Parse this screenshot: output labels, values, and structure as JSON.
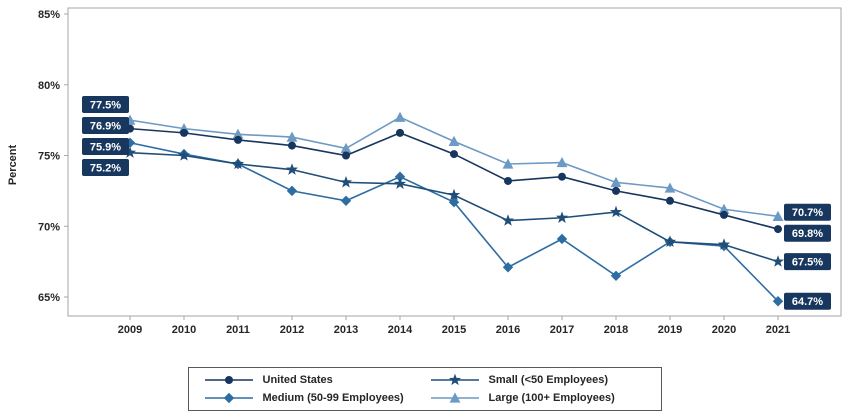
{
  "chart_data": {
    "type": "line",
    "title": "",
    "ylabel": "Percent",
    "xlabel": "",
    "ylim": [
      65,
      85
    ],
    "grid": false,
    "legend_position": "bottom",
    "yticks": [
      {
        "label": "65%",
        "value": 65
      },
      {
        "label": "70%",
        "value": 70
      },
      {
        "label": "75%",
        "value": 75
      },
      {
        "label": "80%",
        "value": 80
      },
      {
        "label": "85%",
        "value": 85
      }
    ],
    "categories": [
      "2009",
      "2010",
      "2011",
      "2012",
      "2013",
      "2014",
      "2015",
      "2016",
      "2017",
      "2018",
      "2019",
      "2020",
      "2021"
    ],
    "series": [
      {
        "name": "Large (100+ Employees)",
        "marker": "triangle",
        "color": "#6d9ac4",
        "values": [
          77.5,
          76.9,
          76.5,
          76.3,
          75.5,
          77.7,
          76.0,
          74.4,
          74.5,
          73.1,
          72.7,
          71.2,
          70.7
        ]
      },
      {
        "name": "Medium (50-99 Employees)",
        "marker": "diamond",
        "color": "#2e6da4",
        "values": [
          75.9,
          75.1,
          74.4,
          72.5,
          71.8,
          73.5,
          71.7,
          67.1,
          69.1,
          66.5,
          68.9,
          68.6,
          64.7
        ]
      },
      {
        "name": "Small (<50 Employees)",
        "marker": "star",
        "color": "#1f4e79",
        "values": [
          75.2,
          75.0,
          74.4,
          74.0,
          73.1,
          73.0,
          72.2,
          70.4,
          70.6,
          71.0,
          68.9,
          68.7,
          67.5
        ]
      },
      {
        "name": "United States",
        "marker": "circle",
        "color": "#17365d",
        "values": [
          76.9,
          76.6,
          76.1,
          75.7,
          75.0,
          76.6,
          75.1,
          73.2,
          73.5,
          72.5,
          71.8,
          70.8,
          69.8
        ]
      }
    ],
    "endpoint_labels": {
      "left": [
        {
          "text": "77.5%",
          "value": 77.5
        },
        {
          "text": "76.9%",
          "value": 76.9
        },
        {
          "text": "75.9%",
          "value": 75.9
        },
        {
          "text": "75.2%",
          "value": 75.2
        }
      ],
      "right": [
        {
          "text": "70.7%",
          "value": 70.7
        },
        {
          "text": "69.8%",
          "value": 69.8
        },
        {
          "text": "67.5%",
          "value": 67.5
        },
        {
          "text": "64.7%",
          "value": 64.7
        }
      ]
    },
    "styles": {
      "label_box_bg": "#17375e",
      "label_box_text": "#ffffff",
      "plot_border": "#a6a6a6",
      "axis_text": "#262626"
    }
  },
  "legend": {
    "items": [
      {
        "label": "United States",
        "series": "United States"
      },
      {
        "label": "Small (<50 Employees)",
        "series": "Small (<50 Employees)"
      },
      {
        "label": "Medium (50-99 Employees)",
        "series": "Medium (50-99 Employees)"
      },
      {
        "label": "Large (100+ Employees)",
        "series": "Large (100+ Employees)"
      }
    ]
  }
}
